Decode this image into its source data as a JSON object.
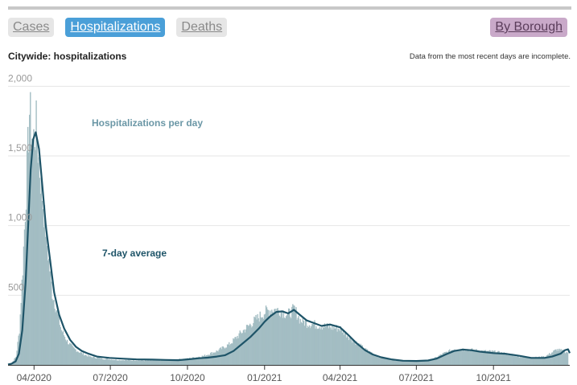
{
  "tabs": [
    {
      "label": "Cases",
      "active": false
    },
    {
      "label": "Hospitalizations",
      "active": true
    },
    {
      "label": "Deaths",
      "active": false
    }
  ],
  "borough_button": "By Borough",
  "chart_title": "Citywide: hospitalizations",
  "note": "Data from the most recent days are incomplete.",
  "colors": {
    "active_tab": "#4a9fd8",
    "borough_button": "#c9a9c9",
    "daily_bars": "#a3bdc3",
    "average_line": "#1e5468",
    "incomplete_band": "#e8e8e8"
  },
  "chart_data": {
    "type": "area",
    "y_ticks": [
      "500",
      "1,000",
      "1,500",
      "2,000"
    ],
    "y_tick_values": [
      500,
      1000,
      1500,
      2000
    ],
    "ylim": [
      0,
      2100
    ],
    "x_ticks": [
      "04/2020",
      "07/2020",
      "10/2020",
      "01/2021",
      "04/2021",
      "07/2021",
      "10/2021"
    ],
    "x_tick_dates": [
      "2020-04-01",
      "2020-07-01",
      "2020-10-01",
      "2021-01-01",
      "2021-04-01",
      "2021-07-01",
      "2021-10-01"
    ],
    "xlim": [
      "2020-03-01",
      "2021-12-31"
    ],
    "grid": true,
    "annotations": [
      "Hospitalizations per day",
      "7-day average"
    ],
    "series": [
      {
        "name": "Hospitalizations per day",
        "style": "bars",
        "dates": [
          "2020-03-01",
          "2020-03-05",
          "2020-03-10",
          "2020-03-14",
          "2020-03-18",
          "2020-03-22",
          "2020-03-26",
          "2020-03-30",
          "2020-04-03",
          "2020-04-07",
          "2020-04-12",
          "2020-04-17",
          "2020-04-22",
          "2020-04-27",
          "2020-05-03",
          "2020-05-10",
          "2020-05-17",
          "2020-05-25",
          "2020-06-05",
          "2020-06-20",
          "2020-07-10",
          "2020-08-10",
          "2020-09-10",
          "2020-10-01",
          "2020-10-20",
          "2020-11-05",
          "2020-11-20",
          "2020-12-05",
          "2020-12-20",
          "2021-01-01",
          "2021-01-10",
          "2021-01-20",
          "2021-01-28",
          "2021-02-05",
          "2021-02-12",
          "2021-02-20",
          "2021-03-01",
          "2021-03-10",
          "2021-03-20",
          "2021-04-01",
          "2021-04-15",
          "2021-05-01",
          "2021-05-15",
          "2021-06-01",
          "2021-06-15",
          "2021-07-01",
          "2021-07-20",
          "2021-08-01",
          "2021-08-15",
          "2021-09-01",
          "2021-09-15",
          "2021-10-01",
          "2021-10-15",
          "2021-11-01",
          "2021-11-15",
          "2021-12-01",
          "2021-12-15",
          "2021-12-28"
        ],
        "values": [
          5,
          15,
          60,
          250,
          700,
          1250,
          1820,
          1600,
          1700,
          1400,
          1100,
          800,
          520,
          400,
          250,
          170,
          120,
          90,
          60,
          45,
          35,
          30,
          35,
          45,
          65,
          100,
          150,
          240,
          320,
          380,
          400,
          390,
          360,
          400,
          320,
          300,
          290,
          280,
          270,
          260,
          180,
          110,
          60,
          35,
          28,
          25,
          40,
          80,
          115,
          110,
          100,
          95,
          80,
          60,
          50,
          60,
          110,
          90
        ]
      },
      {
        "name": "7-day average",
        "style": "line",
        "dates": [
          "2020-03-01",
          "2020-03-05",
          "2020-03-10",
          "2020-03-14",
          "2020-03-18",
          "2020-03-22",
          "2020-03-25",
          "2020-03-28",
          "2020-03-31",
          "2020-04-03",
          "2020-04-07",
          "2020-04-11",
          "2020-04-15",
          "2020-04-20",
          "2020-04-25",
          "2020-05-01",
          "2020-05-07",
          "2020-05-14",
          "2020-05-21",
          "2020-05-28",
          "2020-06-05",
          "2020-06-15",
          "2020-06-30",
          "2020-07-15",
          "2020-08-01",
          "2020-08-20",
          "2020-09-05",
          "2020-09-20",
          "2020-10-01",
          "2020-10-15",
          "2020-10-25",
          "2020-11-05",
          "2020-11-15",
          "2020-11-25",
          "2020-12-05",
          "2020-12-15",
          "2020-12-25",
          "2021-01-01",
          "2021-01-08",
          "2021-01-15",
          "2021-01-22",
          "2021-01-29",
          "2021-02-05",
          "2021-02-12",
          "2021-02-20",
          "2021-03-01",
          "2021-03-10",
          "2021-03-20",
          "2021-04-01",
          "2021-04-10",
          "2021-04-20",
          "2021-05-01",
          "2021-05-10",
          "2021-05-20",
          "2021-06-01",
          "2021-06-15",
          "2021-07-01",
          "2021-07-15",
          "2021-07-25",
          "2021-08-05",
          "2021-08-15",
          "2021-08-25",
          "2021-09-05",
          "2021-09-15",
          "2021-10-01",
          "2021-10-15",
          "2021-11-01",
          "2021-11-15",
          "2021-12-01",
          "2021-12-10",
          "2021-12-20",
          "2021-12-25",
          "2021-12-29",
          "2021-12-31"
        ],
        "values": [
          3,
          8,
          25,
          80,
          250,
          600,
          1000,
          1400,
          1620,
          1670,
          1550,
          1280,
          1000,
          760,
          520,
          360,
          260,
          180,
          130,
          100,
          80,
          60,
          50,
          45,
          40,
          38,
          36,
          34,
          40,
          48,
          52,
          60,
          70,
          100,
          150,
          200,
          260,
          310,
          350,
          380,
          385,
          370,
          395,
          360,
          320,
          300,
          280,
          290,
          270,
          220,
          160,
          105,
          75,
          55,
          40,
          30,
          28,
          32,
          45,
          75,
          100,
          110,
          105,
          95,
          85,
          80,
          65,
          50,
          50,
          60,
          80,
          105,
          112,
          85
        ]
      }
    ]
  }
}
